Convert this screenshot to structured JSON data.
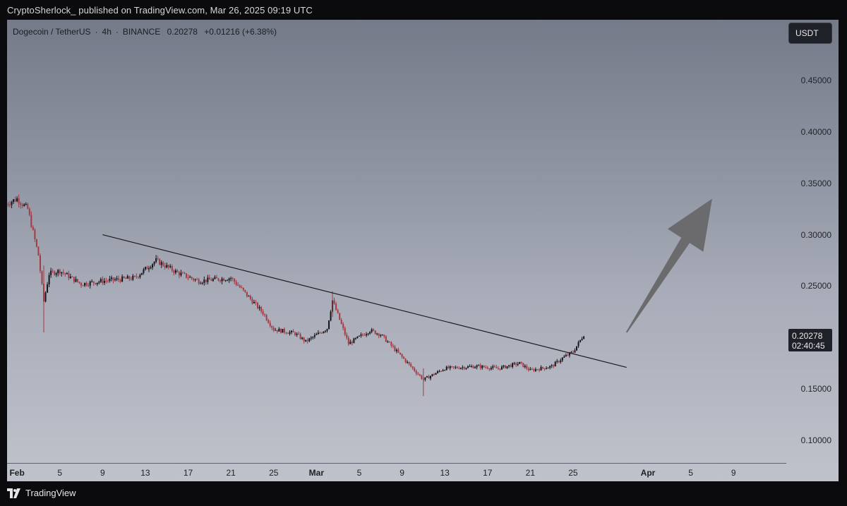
{
  "header": {
    "text": "CryptoSherlock_ published on TradingView.com, Mar 26, 2025 09:19 UTC"
  },
  "symbol": {
    "name": "Dogecoin / TetherUS",
    "interval": "4h",
    "exchange": "BINANCE",
    "price": "0.20278",
    "change": "+0.01216 (+6.38%)"
  },
  "currency_button": "USDT",
  "current_price": {
    "value": "0.20278",
    "countdown": "02:40:45"
  },
  "footer": {
    "brand": "TradingView"
  },
  "colors": {
    "up": "#14151a",
    "down": "#a33a44",
    "trendline": "#1c1c20",
    "arrow": "#6b6b6d"
  },
  "chart_data": {
    "type": "candlestick",
    "y_ticks": [
      "0.45000",
      "0.40000",
      "0.35000",
      "0.30000",
      "0.25000",
      "0.15000",
      "0.10000"
    ],
    "x_ticks": [
      {
        "label": "Feb",
        "bold": true
      },
      {
        "label": "5"
      },
      {
        "label": "9"
      },
      {
        "label": "13"
      },
      {
        "label": "17"
      },
      {
        "label": "21"
      },
      {
        "label": "25"
      },
      {
        "label": "Mar",
        "bold": true
      },
      {
        "label": "5"
      },
      {
        "label": "9"
      },
      {
        "label": "13"
      },
      {
        "label": "17"
      },
      {
        "label": "21"
      },
      {
        "label": "25"
      },
      {
        "label": "Apr",
        "bold": true
      },
      {
        "label": "5"
      },
      {
        "label": "9"
      }
    ],
    "x_range": [
      "2025-01-31",
      "2025-04-11"
    ],
    "ylim": [
      0.07,
      0.5
    ],
    "series_keypoints": [
      {
        "date": "2025-01-31",
        "close": 0.33
      },
      {
        "date": "2025-02-01",
        "close": 0.335
      },
      {
        "date": "2025-02-02",
        "close": 0.325
      },
      {
        "date": "2025-02-03",
        "close": 0.28
      },
      {
        "date": "2025-02-03.5",
        "close": 0.235
      },
      {
        "date": "2025-02-04",
        "close": 0.262
      },
      {
        "date": "2025-02-05",
        "close": 0.265
      },
      {
        "date": "2025-02-07",
        "close": 0.252
      },
      {
        "date": "2025-02-09",
        "close": 0.255
      },
      {
        "date": "2025-02-12",
        "close": 0.258
      },
      {
        "date": "2025-02-14",
        "close": 0.275
      },
      {
        "date": "2025-02-16",
        "close": 0.263
      },
      {
        "date": "2025-02-18",
        "close": 0.255
      },
      {
        "date": "2025-02-21",
        "close": 0.258
      },
      {
        "date": "2025-02-22",
        "close": 0.247
      },
      {
        "date": "2025-02-24",
        "close": 0.224
      },
      {
        "date": "2025-02-25",
        "close": 0.208
      },
      {
        "date": "2025-02-27",
        "close": 0.204
      },
      {
        "date": "2025-02-28",
        "close": 0.196
      },
      {
        "date": "2025-03-02",
        "close": 0.209
      },
      {
        "date": "2025-03-02.5",
        "close": 0.236
      },
      {
        "date": "2025-03-03",
        "close": 0.222
      },
      {
        "date": "2025-03-04",
        "close": 0.194
      },
      {
        "date": "2025-03-06",
        "close": 0.207
      },
      {
        "date": "2025-03-07",
        "close": 0.203
      },
      {
        "date": "2025-03-08",
        "close": 0.192
      },
      {
        "date": "2025-03-10",
        "close": 0.17
      },
      {
        "date": "2025-03-11",
        "close": 0.159
      },
      {
        "date": "2025-03-13",
        "close": 0.17
      },
      {
        "date": "2025-03-16",
        "close": 0.172
      },
      {
        "date": "2025-03-18",
        "close": 0.17
      },
      {
        "date": "2025-03-20",
        "close": 0.175
      },
      {
        "date": "2025-03-21",
        "close": 0.168
      },
      {
        "date": "2025-03-23",
        "close": 0.172
      },
      {
        "date": "2025-03-24",
        "close": 0.18
      },
      {
        "date": "2025-03-25",
        "close": 0.186
      },
      {
        "date": "2025-03-26",
        "close": 0.2028
      }
    ],
    "trendline": [
      {
        "date": "2025-02-09",
        "price": 0.3
      },
      {
        "date": "2025-03-30",
        "price": 0.171
      }
    ],
    "arrow": [
      {
        "date": "2025-03-30",
        "price": 0.205
      },
      {
        "date": "2025-04-07",
        "price": 0.335
      }
    ]
  }
}
